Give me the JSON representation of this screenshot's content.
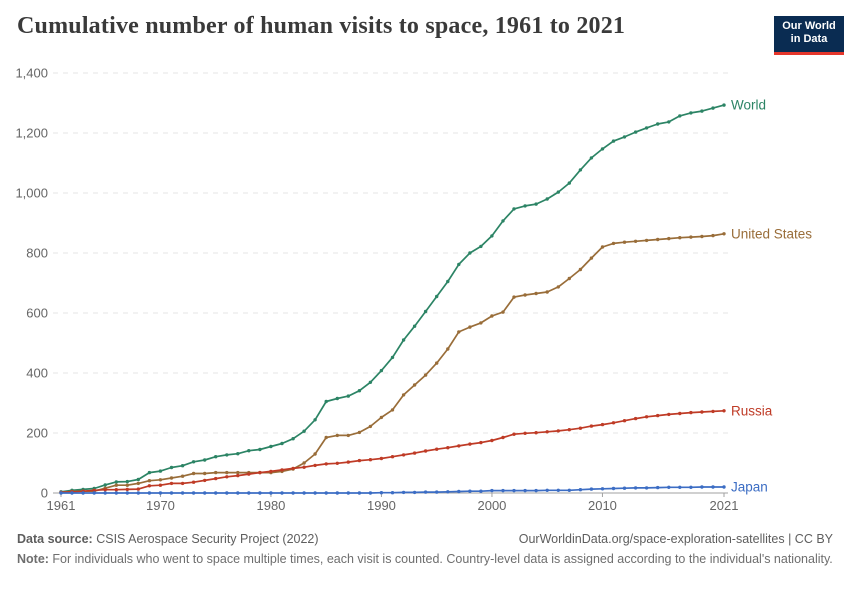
{
  "title": "Cumulative number of human visits to space, 1961 to 2021",
  "logo": {
    "line1": "Our World",
    "line2": "in Data"
  },
  "footer": {
    "source_label": "Data source:",
    "source_text": " CSIS Aerospace Security Project (2022)",
    "link_text": "OurWorldinData.org/space-exploration-satellites | CC BY",
    "note_label": "Note:",
    "note_text": " For individuals who went to space multiple times, each visit is counted. Country-level data is assigned according to the individual's nationality."
  },
  "colors": {
    "logo_background": "#0a2c52",
    "logo_stripe": "#e5362b",
    "title_text": "#3a3a3a",
    "axis_text": "#666666",
    "axis_line": "#a1a1a1",
    "gridline": "#e4e4e4",
    "world": "#2c8465",
    "united_states": "#996d39",
    "russia": "#bf3b26",
    "japan": "#3c6dc4"
  },
  "chart_data": {
    "type": "line",
    "title": "Cumulative number of human visits to space, 1961 to 2021",
    "xlabel": "",
    "ylabel": "",
    "ylim": [
      0,
      1400
    ],
    "y_ticks": [
      0,
      200,
      400,
      600,
      800,
      1000,
      1200,
      1400
    ],
    "y_tick_labels": [
      "0",
      "200",
      "400",
      "600",
      "800",
      "1,000",
      "1,200",
      "1,400"
    ],
    "x_ticks": [
      1961,
      1970,
      1980,
      1990,
      2000,
      2010,
      2021
    ],
    "grid": "horizontal-dashed",
    "legend_position": "end-of-line-labels",
    "x": [
      1961,
      1962,
      1963,
      1964,
      1965,
      1966,
      1967,
      1968,
      1969,
      1970,
      1971,
      1972,
      1973,
      1974,
      1975,
      1976,
      1977,
      1978,
      1979,
      1980,
      1981,
      1982,
      1983,
      1984,
      1985,
      1986,
      1987,
      1988,
      1989,
      1990,
      1991,
      1992,
      1993,
      1994,
      1995,
      1996,
      1997,
      1998,
      1999,
      2000,
      2001,
      2002,
      2003,
      2004,
      2005,
      2006,
      2007,
      2008,
      2009,
      2010,
      2011,
      2012,
      2013,
      2014,
      2015,
      2016,
      2017,
      2018,
      2019,
      2020,
      2021
    ],
    "series": [
      {
        "name": "World",
        "color": "#2c8465",
        "values": [
          4,
          9,
          12,
          15,
          27,
          37,
          38,
          45,
          68,
          73,
          85,
          91,
          104,
          110,
          121,
          127,
          131,
          141,
          145,
          155,
          165,
          181,
          206,
          244,
          305,
          315,
          323,
          341,
          369,
          408,
          452,
          510,
          556,
          605,
          655,
          705,
          762,
          800,
          822,
          857,
          907,
          947,
          957,
          963,
          980,
          1003,
          1033,
          1077,
          1117,
          1147,
          1173,
          1187,
          1203,
          1217,
          1230,
          1237,
          1257,
          1267,
          1273,
          1283,
          1293
        ]
      },
      {
        "name": "United States",
        "color": "#996d39",
        "values": [
          2,
          5,
          6,
          6,
          16,
          26,
          26,
          32,
          41,
          44,
          50,
          56,
          65,
          65,
          68,
          68,
          68,
          68,
          68,
          68,
          72,
          80,
          100,
          130,
          185,
          192,
          192,
          202,
          222,
          252,
          277,
          327,
          360,
          393,
          433,
          480,
          537,
          553,
          567,
          590,
          603,
          653,
          660,
          665,
          670,
          687,
          715,
          745,
          783,
          820,
          832,
          836,
          839,
          842,
          845,
          848,
          851,
          853,
          855,
          858,
          864
        ]
      },
      {
        "name": "Russia",
        "color": "#bf3b26",
        "values": [
          2,
          4,
          6,
          9,
          11,
          11,
          12,
          13,
          24,
          26,
          32,
          32,
          36,
          42,
          48,
          54,
          58,
          63,
          68,
          72,
          77,
          82,
          86,
          92,
          97,
          99,
          103,
          108,
          111,
          115,
          121,
          127,
          133,
          140,
          146,
          151,
          157,
          163,
          168,
          175,
          185,
          196,
          199,
          201,
          204,
          207,
          211,
          216,
          223,
          228,
          234,
          241,
          248,
          254,
          258,
          262,
          265,
          268,
          270,
          272,
          274
        ]
      },
      {
        "name": "Japan",
        "color": "#3c6dc4",
        "values": [
          0,
          0,
          0,
          0,
          0,
          0,
          0,
          0,
          0,
          0,
          0,
          0,
          0,
          0,
          0,
          0,
          0,
          0,
          0,
          0,
          0,
          0,
          0,
          0,
          0,
          0,
          0,
          0,
          0,
          1,
          1,
          2,
          2,
          3,
          3,
          4,
          5,
          6,
          6,
          8,
          8,
          8,
          8,
          8,
          9,
          9,
          9,
          11,
          13,
          14,
          15,
          16,
          17,
          17,
          18,
          19,
          19,
          19,
          20,
          20,
          20
        ]
      }
    ]
  }
}
